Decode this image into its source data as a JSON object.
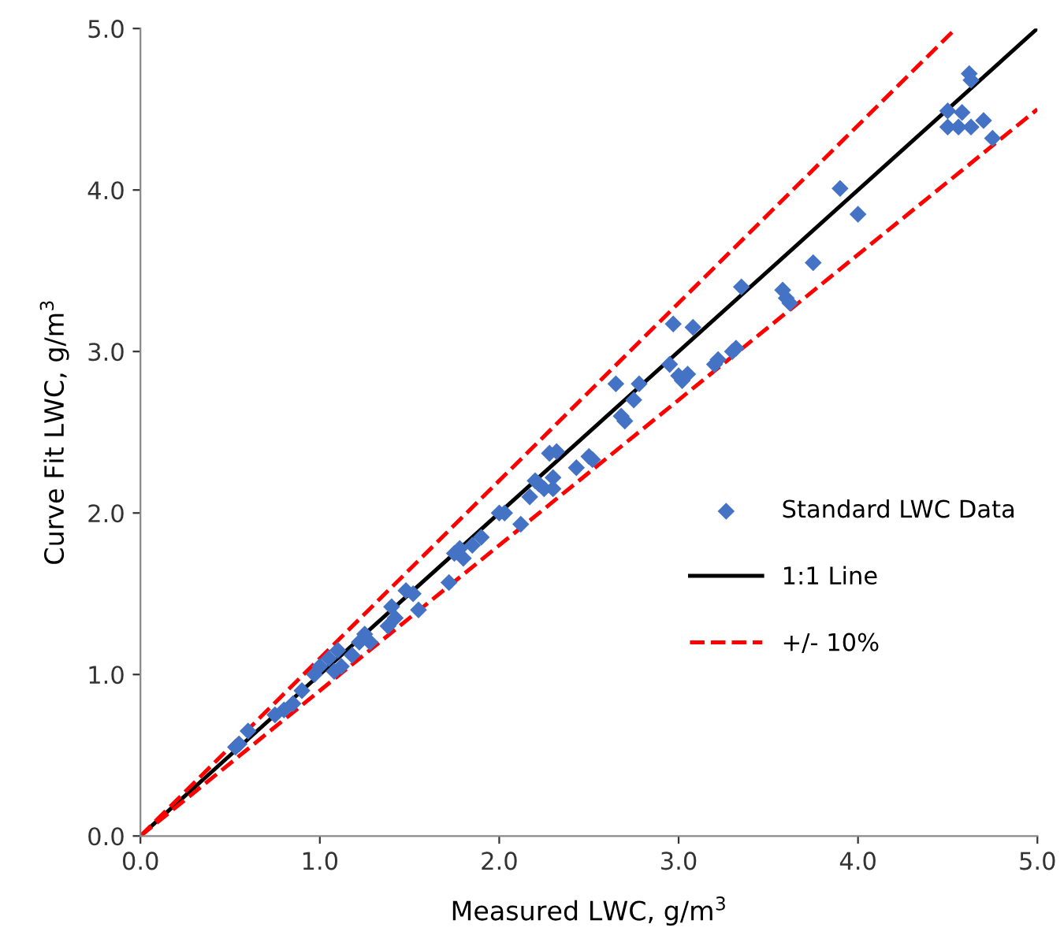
{
  "chart_data": {
    "type": "scatter",
    "xlabel": "Measured LWC, g/m$^{3}$",
    "ylabel": "Curve Fit LWC, g/m$^{3}$",
    "xlim": [
      0,
      5
    ],
    "ylim": [
      0,
      5
    ],
    "xticks": [
      {
        "value": 0,
        "label": "0.0"
      },
      {
        "value": 1,
        "label": "1.0"
      },
      {
        "value": 2,
        "label": "2.0"
      },
      {
        "value": 3,
        "label": "3.0"
      },
      {
        "value": 4,
        "label": "4.0"
      },
      {
        "value": 5,
        "label": "5.0"
      }
    ],
    "yticks": [
      {
        "value": 0,
        "label": "0.0"
      },
      {
        "value": 1,
        "label": "1.0"
      },
      {
        "value": 2,
        "label": "2.0"
      },
      {
        "value": 3,
        "label": "3.0"
      },
      {
        "value": 4,
        "label": "4.0"
      },
      {
        "value": 5,
        "label": "5.0"
      }
    ],
    "grid": false,
    "legend": "right",
    "marker": "diamond",
    "series": [
      {
        "name": "Standard LWC Data",
        "color": "#4472c4",
        "x": [
          0.53,
          0.55,
          0.6,
          0.75,
          0.8,
          0.85,
          0.9,
          0.97,
          1.0,
          1.05,
          1.08,
          1.1,
          1.12,
          1.18,
          1.22,
          1.25,
          1.28,
          1.38,
          1.4,
          1.42,
          1.48,
          1.52,
          1.55,
          1.72,
          1.75,
          1.78,
          1.8,
          1.85,
          1.9,
          2.0,
          2.03,
          2.12,
          2.17,
          2.2,
          2.22,
          2.25,
          2.28,
          2.3,
          2.32,
          2.3,
          2.43,
          2.5,
          2.52,
          2.65,
          2.68,
          2.7,
          2.75,
          2.78,
          2.95,
          2.97,
          3.0,
          3.02,
          3.05,
          3.08,
          3.2,
          3.22,
          3.3,
          3.32,
          3.35,
          3.58,
          3.6,
          3.62,
          3.75,
          3.9,
          4.0,
          4.5,
          4.5,
          4.56,
          4.58,
          4.62,
          4.63,
          4.63,
          4.7,
          4.75
        ],
        "values": [
          0.55,
          0.57,
          0.65,
          0.75,
          0.78,
          0.82,
          0.9,
          1.0,
          1.05,
          1.1,
          1.02,
          1.15,
          1.05,
          1.12,
          1.2,
          1.25,
          1.2,
          1.3,
          1.42,
          1.35,
          1.52,
          1.5,
          1.4,
          1.57,
          1.75,
          1.78,
          1.72,
          1.8,
          1.85,
          2.0,
          2.0,
          1.93,
          2.1,
          2.2,
          2.18,
          2.15,
          2.37,
          2.22,
          2.38,
          2.15,
          2.28,
          2.35,
          2.33,
          2.8,
          2.6,
          2.57,
          2.7,
          2.8,
          2.92,
          3.17,
          2.85,
          2.82,
          2.86,
          3.15,
          2.92,
          2.95,
          3.0,
          3.02,
          3.4,
          3.38,
          3.33,
          3.3,
          3.55,
          4.01,
          3.85,
          4.49,
          4.39,
          4.39,
          4.48,
          4.72,
          4.68,
          4.39,
          4.43,
          4.32
        ]
      },
      {
        "name": "1:1 Line",
        "type": "line",
        "color": "#000000",
        "line_style": "solid",
        "marker": "none",
        "x": [
          0,
          5
        ],
        "values": [
          0,
          5
        ]
      },
      {
        "name": "+/- 10%",
        "type": "line",
        "color": "#ff0000",
        "line_style": "dashed",
        "marker": "none",
        "x": [
          0,
          4.545
        ],
        "values": [
          0,
          5
        ]
      },
      {
        "type": "line",
        "color": "#ff0000",
        "line_style": "dashed",
        "marker": "none",
        "x": [
          0,
          5
        ],
        "values": [
          0,
          4.5
        ]
      }
    ]
  }
}
